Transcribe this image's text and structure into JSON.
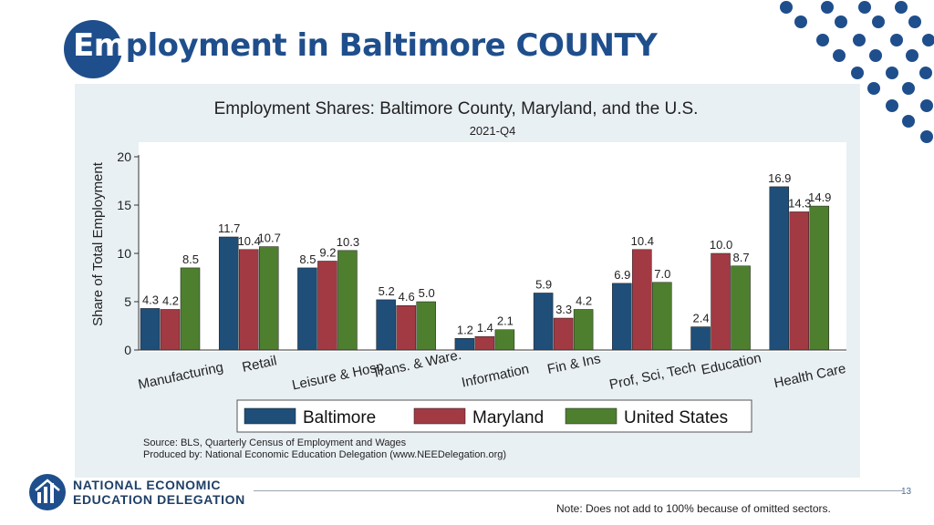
{
  "slide": {
    "title_highlight": "Em",
    "title_rest": "ployment in Baltimore COUNTY",
    "org_line1": "NATIONAL ECONOMIC",
    "org_line2": "EDUCATION DELEGATION",
    "page_number": "13",
    "note": "Note: Does not add to 100% because of omitted sectors."
  },
  "colors": {
    "brand": "#1f4e8c",
    "baltimore": "#1f4e79",
    "maryland": "#a23a44",
    "united_states": "#4e7f2f"
  },
  "chart_data": {
    "type": "bar",
    "title": "Employment Shares: Baltimore County, Maryland, and the U.S.",
    "subtitle": "2021-Q4",
    "ylabel": "Share of Total Employment",
    "xlabel": "",
    "ylim": [
      0,
      20
    ],
    "yticks": [
      "0",
      "5",
      "10",
      "15",
      "20"
    ],
    "ytick_values": [
      0,
      5,
      10,
      15,
      20
    ],
    "grid": false,
    "legend_position": "bottom",
    "categories": [
      "Manufacturing",
      "Retail",
      "Leisure & Hosp",
      "Trans. & Ware.",
      "Information",
      "Fin & Ins",
      "Prof, Sci, Tech",
      "Education",
      "Health Care"
    ],
    "series": [
      {
        "name": "Baltimore",
        "values": [
          4.3,
          11.7,
          8.5,
          5.2,
          1.2,
          5.9,
          6.9,
          2.4,
          16.9
        ],
        "labels": [
          "4.3",
          "11.7",
          "8.5",
          "5.2",
          "1.2",
          "5.9",
          "6.9",
          "2.4",
          "16.9"
        ]
      },
      {
        "name": "Maryland",
        "values": [
          4.2,
          10.4,
          9.2,
          4.6,
          1.4,
          3.3,
          10.4,
          10.0,
          14.3
        ],
        "labels": [
          "4.2",
          "10.4",
          "9.2",
          "4.6",
          "1.4",
          "3.3",
          "10.4",
          "10.0",
          "14.3"
        ]
      },
      {
        "name": "United States",
        "values": [
          8.5,
          10.7,
          10.3,
          5.0,
          2.1,
          4.2,
          7.0,
          8.7,
          14.9
        ],
        "labels": [
          "8.5",
          "10.7",
          "10.3",
          "5.0",
          "2.1",
          "4.2",
          "7.0",
          "8.7",
          "14.9"
        ]
      }
    ],
    "source_line1": "Source: BLS, Quarterly Census of Employment and Wages",
    "source_line2": "Produced by: National Economic Education Delegation (www.NEEDelegation.org)"
  }
}
